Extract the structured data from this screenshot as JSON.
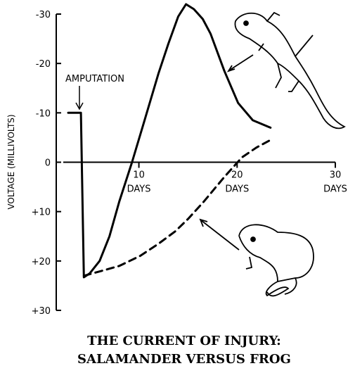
{
  "chart_data": {
    "type": "line",
    "title": [
      "THE CURRENT OF INJURY:",
      "SALAMANDER VERSUS FROG"
    ],
    "y_label": "VOLTAGE (MILLIVOLTS)",
    "x_unit": "DAYS",
    "annotation": "AMPUTATION",
    "xlim": [
      2.3,
      30
    ],
    "xticks": [
      10,
      20,
      30
    ],
    "ylim": [
      30,
      -30
    ],
    "yticks": [
      -30,
      -20,
      -10,
      0,
      {
        "value": 10,
        "label": "+10"
      },
      {
        "value": 20,
        "label": "+20"
      },
      {
        "value": 30,
        "label": "+30"
      }
    ],
    "series": [
      {
        "color": "#000000",
        "dash": false,
        "x": [
          2.8,
          4.1,
          4.4,
          5,
          6,
          7,
          8,
          9.3,
          10.5,
          12,
          13,
          14,
          14.8,
          15.6,
          16.5,
          17.3,
          18.7,
          20.1,
          21.6,
          23.4
        ],
        "values": [
          -10,
          -10,
          23.3,
          22.5,
          20,
          15,
          8,
          0,
          -8,
          -18,
          -24,
          -29.5,
          -32,
          -31,
          -29,
          -26,
          -18.5,
          -12,
          -8.5,
          -7
        ]
      },
      {
        "color": "#000000",
        "dash": true,
        "x": [
          4.4,
          6.2,
          8,
          10.1,
          12,
          13.7,
          15,
          16.6,
          18.7,
          20.5,
          22,
          23.4
        ],
        "values": [
          23,
          22,
          21,
          19,
          16.5,
          14,
          11.5,
          8,
          3,
          -1,
          -3,
          -4.5
        ]
      }
    ]
  }
}
